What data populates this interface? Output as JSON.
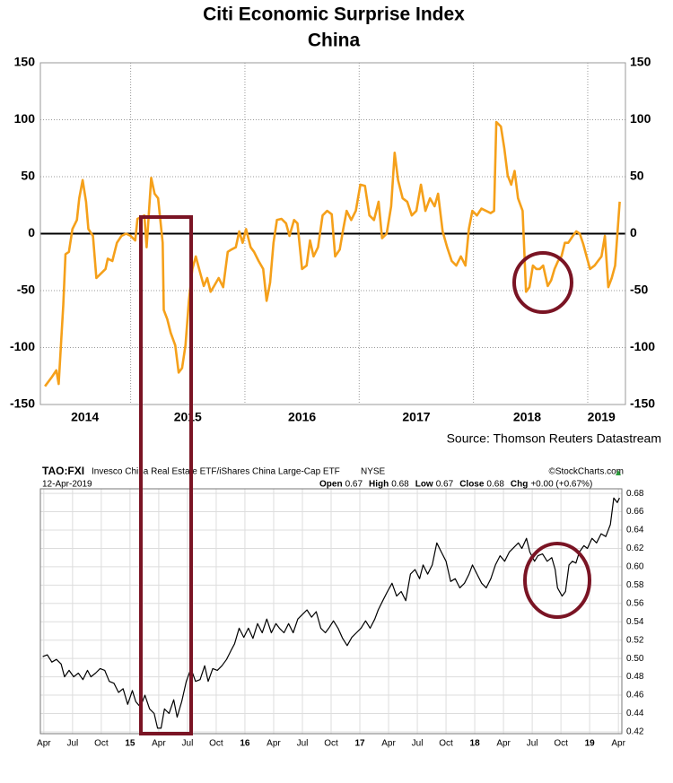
{
  "chart_data": [
    {
      "type": "line",
      "title": "Citi Economic Surprise Index",
      "subtitle": "China",
      "source": "Source: Thomson Reuters Datastream",
      "color": "#f5a01a",
      "grid": true,
      "zero_line": true,
      "xlim": [
        2014.21,
        2019.33
      ],
      "xticks": [
        {
          "value": 2014.6,
          "label": "2014"
        },
        {
          "value": 2015.5,
          "label": "2015"
        },
        {
          "value": 2016.5,
          "label": "2016"
        },
        {
          "value": 2017.5,
          "label": "2017"
        },
        {
          "value": 2018.47,
          "label": "2018"
        },
        {
          "value": 2019.12,
          "label": "2019"
        }
      ],
      "xgrid": [
        2015,
        2016,
        2017,
        2018,
        2019
      ],
      "ylim": [
        -150,
        150
      ],
      "yticks": [
        -150,
        -100,
        -50,
        0,
        50,
        100,
        150
      ],
      "x": [
        2014.25,
        2014.31,
        2014.35,
        2014.37,
        2014.39,
        2014.41,
        2014.43,
        2014.46,
        2014.49,
        2014.53,
        2014.55,
        2014.58,
        2014.61,
        2014.63,
        2014.67,
        2014.7,
        2014.74,
        2014.78,
        2014.8,
        2014.84,
        2014.88,
        2014.92,
        2014.96,
        2015.0,
        2015.04,
        2015.06,
        2015.12,
        2015.14,
        2015.18,
        2015.21,
        2015.24,
        2015.28,
        2015.29,
        2015.32,
        2015.35,
        2015.39,
        2015.42,
        2015.45,
        2015.48,
        2015.51,
        2015.54,
        2015.57,
        2015.61,
        2015.64,
        2015.67,
        2015.7,
        2015.73,
        2015.77,
        2015.81,
        2015.85,
        2015.88,
        2015.92,
        2015.95,
        2015.98,
        2016.01,
        2016.05,
        2016.08,
        2016.12,
        2016.16,
        2016.19,
        2016.22,
        2016.25,
        2016.28,
        2016.32,
        2016.36,
        2016.39,
        2016.43,
        2016.46,
        2016.5,
        2016.54,
        2016.57,
        2016.6,
        2016.64,
        2016.68,
        2016.72,
        2016.76,
        2016.79,
        2016.83,
        2016.86,
        2016.89,
        2016.93,
        2016.97,
        2017.01,
        2017.05,
        2017.09,
        2017.13,
        2017.17,
        2017.2,
        2017.24,
        2017.28,
        2017.31,
        2017.34,
        2017.38,
        2017.42,
        2017.46,
        2017.5,
        2017.54,
        2017.58,
        2017.62,
        2017.66,
        2017.69,
        2017.73,
        2017.77,
        2017.81,
        2017.85,
        2017.89,
        2017.93,
        2017.96,
        2017.99,
        2018.03,
        2018.07,
        2018.11,
        2018.15,
        2018.18,
        2018.2,
        2018.24,
        2018.27,
        2018.3,
        2018.33,
        2018.36,
        2018.39,
        2018.43,
        2018.46,
        2018.49,
        2018.52,
        2018.55,
        2018.58,
        2018.61,
        2018.65,
        2018.68,
        2018.71,
        2018.74,
        2018.77,
        2018.8,
        2018.83,
        2018.87,
        2018.9,
        2018.93,
        2018.96,
        2018.99,
        2019.02,
        2019.06,
        2019.09,
        2019.12,
        2019.15,
        2019.18,
        2019.21,
        2019.24,
        2019.28
      ],
      "values": [
        -134,
        -126,
        -120,
        -132,
        -98,
        -63,
        -18,
        -16,
        4,
        12,
        31,
        47,
        28,
        4,
        -2,
        -39,
        -35,
        -31,
        -22,
        -24,
        -8,
        -2,
        0,
        -2,
        -6,
        13,
        16,
        -12,
        49,
        35,
        31,
        -8,
        -67,
        -75,
        -87,
        -98,
        -122,
        -118,
        -98,
        -59,
        -31,
        -20,
        -35,
        -46,
        -39,
        -51,
        -46,
        -39,
        -47,
        -16,
        -14,
        -12,
        2,
        -8,
        4,
        -12,
        -16,
        -24,
        -31,
        -59,
        -43,
        -8,
        12,
        13,
        9,
        -2,
        12,
        9,
        -31,
        -28,
        -6,
        -20,
        -12,
        16,
        20,
        17,
        -20,
        -14,
        4,
        20,
        12,
        20,
        43,
        42,
        16,
        12,
        28,
        -4,
        0,
        24,
        71,
        47,
        31,
        28,
        16,
        20,
        43,
        20,
        31,
        24,
        35,
        2,
        -12,
        -24,
        -28,
        -20,
        -28,
        4,
        20,
        16,
        22,
        20,
        18,
        20,
        98,
        94,
        75,
        51,
        43,
        55,
        31,
        20,
        -51,
        -47,
        -28,
        -31,
        -31,
        -28,
        -46,
        -41,
        -31,
        -24,
        -20,
        -8,
        -8,
        -2,
        2,
        0,
        -9,
        -20,
        -31,
        -28,
        -24,
        -20,
        -2,
        -47,
        -39,
        -28,
        28
      ]
    },
    {
      "type": "line",
      "symbol": "TAO:FXI",
      "title": "Invesco China Real Estate ETF/iShares China Large-Cap ETF",
      "exchange": "NYSE",
      "credit": "©StockCharts.com",
      "date": "12-Apr-2019",
      "quote": [
        {
          "label": "Open",
          "value": "0.67"
        },
        {
          "label": "High",
          "value": "0.68"
        },
        {
          "label": "Low",
          "value": "0.67"
        },
        {
          "label": "Close",
          "value": "0.68"
        },
        {
          "label": "Chg",
          "value": "+0.00 (+0.67%)"
        }
      ],
      "color": "#000000",
      "grid": true,
      "xlim": [
        2014.22,
        2019.28
      ],
      "xticks": [
        {
          "value": 2014.25,
          "label": "Apr"
        },
        {
          "value": 2014.5,
          "label": "Jul"
        },
        {
          "value": 2014.75,
          "label": "Oct"
        },
        {
          "value": 2015,
          "label": "15"
        },
        {
          "value": 2015.25,
          "label": "Apr"
        },
        {
          "value": 2015.5,
          "label": "Jul"
        },
        {
          "value": 2015.75,
          "label": "Oct"
        },
        {
          "value": 2016,
          "label": "16"
        },
        {
          "value": 2016.25,
          "label": "Apr"
        },
        {
          "value": 2016.5,
          "label": "Jul"
        },
        {
          "value": 2016.75,
          "label": "Oct"
        },
        {
          "value": 2017,
          "label": "17"
        },
        {
          "value": 2017.25,
          "label": "Apr"
        },
        {
          "value": 2017.5,
          "label": "Jul"
        },
        {
          "value": 2017.75,
          "label": "Oct"
        },
        {
          "value": 2018,
          "label": "18"
        },
        {
          "value": 2018.25,
          "label": "Apr"
        },
        {
          "value": 2018.5,
          "label": "Jul"
        },
        {
          "value": 2018.75,
          "label": "Oct"
        },
        {
          "value": 2019,
          "label": "19"
        },
        {
          "value": 2019.25,
          "label": "Apr"
        }
      ],
      "ylim": [
        0.418,
        0.685
      ],
      "yticks": [
        0.42,
        0.44,
        0.46,
        0.48,
        {
          "value": 0.5,
          "label": "0.50"
        },
        0.52,
        0.54,
        0.56,
        0.58,
        {
          "value": 0.6,
          "label": "0.60"
        },
        0.62,
        0.64,
        0.66,
        0.68
      ],
      "x": [
        2014.24,
        2014.28,
        2014.32,
        2014.36,
        2014.4,
        2014.43,
        2014.47,
        2014.51,
        2014.55,
        2014.59,
        2014.63,
        2014.66,
        2014.7,
        2014.74,
        2014.78,
        2014.82,
        2014.86,
        2014.9,
        2014.94,
        2014.98,
        2015.02,
        2015.05,
        2015.09,
        2015.13,
        2015.17,
        2015.21,
        2015.24,
        2015.27,
        2015.3,
        2015.34,
        2015.38,
        2015.41,
        2015.45,
        2015.49,
        2015.53,
        2015.57,
        2015.61,
        2015.65,
        2015.68,
        2015.72,
        2015.76,
        2015.8,
        2015.84,
        2015.88,
        2015.91,
        2015.95,
        2015.99,
        2016.03,
        2016.07,
        2016.11,
        2016.15,
        2016.19,
        2016.23,
        2016.27,
        2016.3,
        2016.34,
        2016.38,
        2016.42,
        2016.46,
        2016.5,
        2016.54,
        2016.58,
        2016.62,
        2016.66,
        2016.7,
        2016.73,
        2016.77,
        2016.81,
        2016.85,
        2016.89,
        2016.93,
        2016.97,
        2017.01,
        2017.05,
        2017.09,
        2017.13,
        2017.16,
        2017.2,
        2017.24,
        2017.28,
        2017.32,
        2017.36,
        2017.4,
        2017.44,
        2017.48,
        2017.52,
        2017.55,
        2017.59,
        2017.63,
        2017.67,
        2017.71,
        2017.75,
        2017.79,
        2017.83,
        2017.87,
        2017.91,
        2017.95,
        2017.98,
        2018.02,
        2018.06,
        2018.1,
        2018.14,
        2018.18,
        2018.22,
        2018.26,
        2018.3,
        2018.34,
        2018.38,
        2018.41,
        2018.45,
        2018.48,
        2018.52,
        2018.55,
        2018.59,
        2018.63,
        2018.67,
        2018.7,
        2018.72,
        2018.76,
        2018.79,
        2018.82,
        2018.85,
        2018.88,
        2018.91,
        2018.95,
        2018.98,
        2019.02,
        2019.06,
        2019.1,
        2019.14,
        2019.18,
        2019.21,
        2019.24,
        2019.26
      ],
      "values": [
        0.502,
        0.504,
        0.496,
        0.499,
        0.494,
        0.48,
        0.487,
        0.48,
        0.484,
        0.477,
        0.487,
        0.48,
        0.484,
        0.489,
        0.487,
        0.475,
        0.473,
        0.463,
        0.467,
        0.45,
        0.465,
        0.453,
        0.447,
        0.46,
        0.445,
        0.44,
        0.424,
        0.424,
        0.445,
        0.44,
        0.455,
        0.436,
        0.453,
        0.475,
        0.489,
        0.475,
        0.477,
        0.492,
        0.475,
        0.489,
        0.487,
        0.492,
        0.499,
        0.509,
        0.516,
        0.533,
        0.523,
        0.533,
        0.522,
        0.538,
        0.528,
        0.543,
        0.528,
        0.538,
        0.533,
        0.528,
        0.538,
        0.528,
        0.543,
        0.548,
        0.553,
        0.545,
        0.551,
        0.533,
        0.528,
        0.533,
        0.541,
        0.533,
        0.522,
        0.514,
        0.523,
        0.528,
        0.533,
        0.541,
        0.533,
        0.543,
        0.553,
        0.563,
        0.573,
        0.582,
        0.568,
        0.573,
        0.563,
        0.592,
        0.597,
        0.587,
        0.602,
        0.592,
        0.602,
        0.626,
        0.616,
        0.606,
        0.584,
        0.587,
        0.577,
        0.582,
        0.592,
        0.602,
        0.592,
        0.582,
        0.577,
        0.587,
        0.602,
        0.612,
        0.606,
        0.616,
        0.621,
        0.626,
        0.62,
        0.631,
        0.616,
        0.606,
        0.612,
        0.614,
        0.606,
        0.61,
        0.597,
        0.577,
        0.568,
        0.573,
        0.602,
        0.606,
        0.604,
        0.616,
        0.623,
        0.62,
        0.631,
        0.626,
        0.636,
        0.633,
        0.646,
        0.675,
        0.67,
        0.675
      ]
    }
  ]
}
